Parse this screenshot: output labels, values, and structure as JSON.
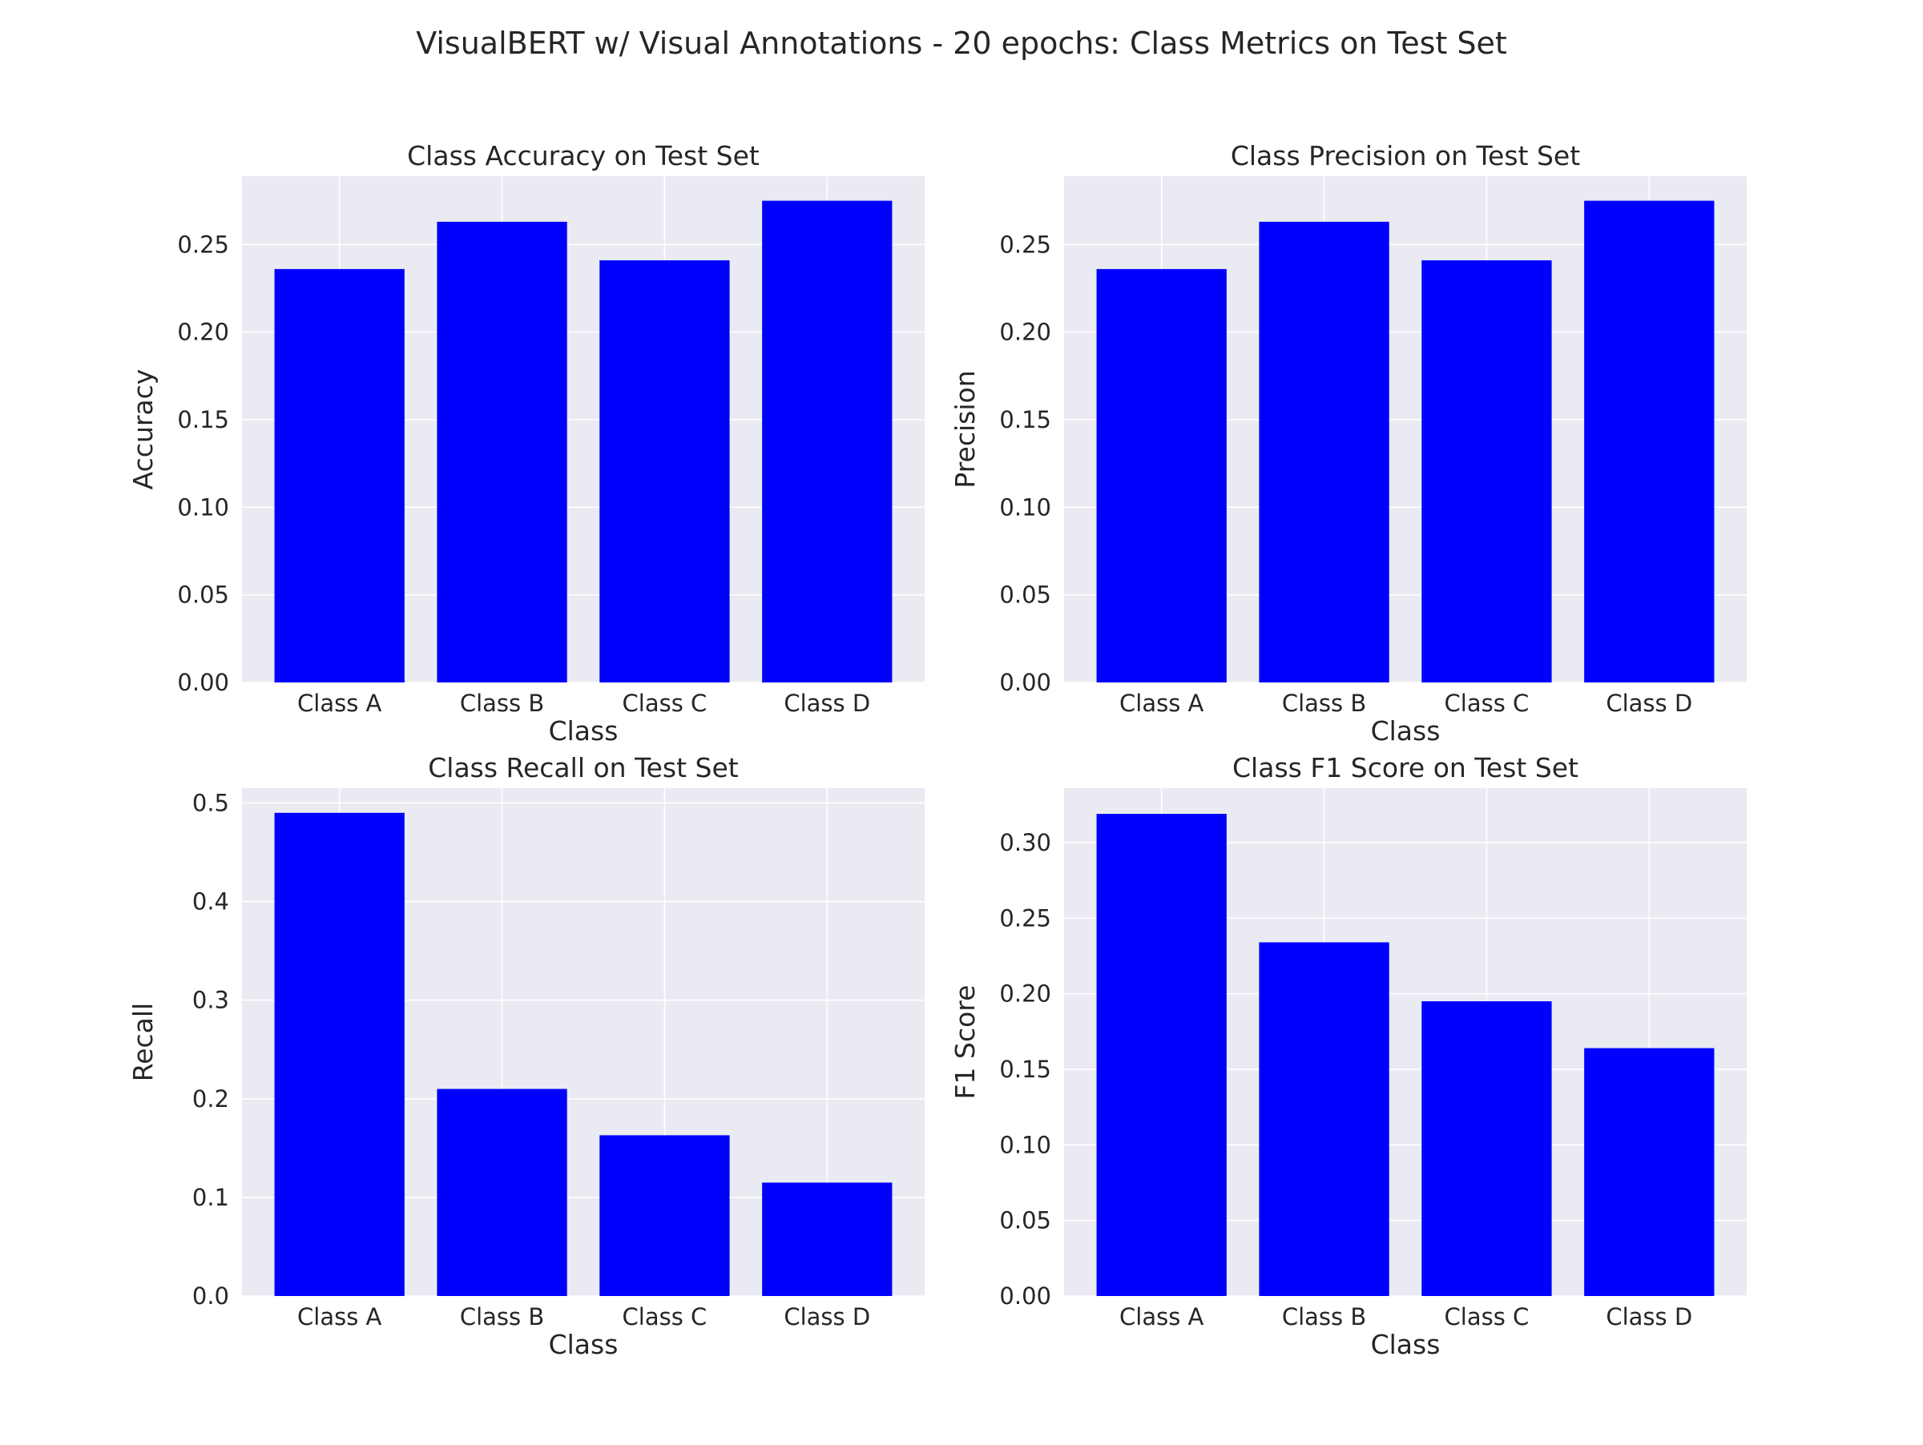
{
  "figure": {
    "suptitle": "VisualBERT w/ Visual Annotations - 20 epochs: Class Metrics on Test Set"
  },
  "colors": {
    "bar": "#0000ff",
    "plot_background": "#eaeaf2",
    "grid": "#ffffff",
    "text": "#262626"
  },
  "chart_data": [
    {
      "type": "bar",
      "title": "Class Accuracy on Test Set",
      "xlabel": "Class",
      "ylabel": "Accuracy",
      "categories": [
        "Class A",
        "Class B",
        "Class C",
        "Class D"
      ],
      "values": [
        0.236,
        0.263,
        0.241,
        0.275
      ],
      "ylim": [
        0,
        0.289
      ],
      "yticks": [
        0.0,
        0.05,
        0.1,
        0.15,
        0.2,
        0.25
      ],
      "ytick_labels": [
        "0.00",
        "0.05",
        "0.10",
        "0.15",
        "0.20",
        "0.25"
      ],
      "grid": true
    },
    {
      "type": "bar",
      "title": "Class Precision on Test Set",
      "xlabel": "Class",
      "ylabel": "Precision",
      "categories": [
        "Class A",
        "Class B",
        "Class C",
        "Class D"
      ],
      "values": [
        0.236,
        0.263,
        0.241,
        0.275
      ],
      "ylim": [
        0,
        0.289
      ],
      "yticks": [
        0.0,
        0.05,
        0.1,
        0.15,
        0.2,
        0.25
      ],
      "ytick_labels": [
        "0.00",
        "0.05",
        "0.10",
        "0.15",
        "0.20",
        "0.25"
      ],
      "grid": true
    },
    {
      "type": "bar",
      "title": "Class Recall on Test Set",
      "xlabel": "Class",
      "ylabel": "Recall",
      "categories": [
        "Class A",
        "Class B",
        "Class C",
        "Class D"
      ],
      "values": [
        0.49,
        0.21,
        0.163,
        0.115
      ],
      "ylim": [
        0,
        0.515
      ],
      "yticks": [
        0.0,
        0.1,
        0.2,
        0.3,
        0.4,
        0.5
      ],
      "ytick_labels": [
        "0.0",
        "0.1",
        "0.2",
        "0.3",
        "0.4",
        "0.5"
      ],
      "grid": true
    },
    {
      "type": "bar",
      "title": "Class F1 Score on Test Set",
      "xlabel": "Class",
      "ylabel": "F1 Score",
      "categories": [
        "Class A",
        "Class B",
        "Class C",
        "Class D"
      ],
      "values": [
        0.319,
        0.234,
        0.195,
        0.164
      ],
      "ylim": [
        0,
        0.336
      ],
      "yticks": [
        0.0,
        0.05,
        0.1,
        0.15,
        0.2,
        0.25,
        0.3
      ],
      "ytick_labels": [
        "0.00",
        "0.05",
        "0.10",
        "0.15",
        "0.20",
        "0.25",
        "0.30"
      ],
      "grid": true
    }
  ]
}
